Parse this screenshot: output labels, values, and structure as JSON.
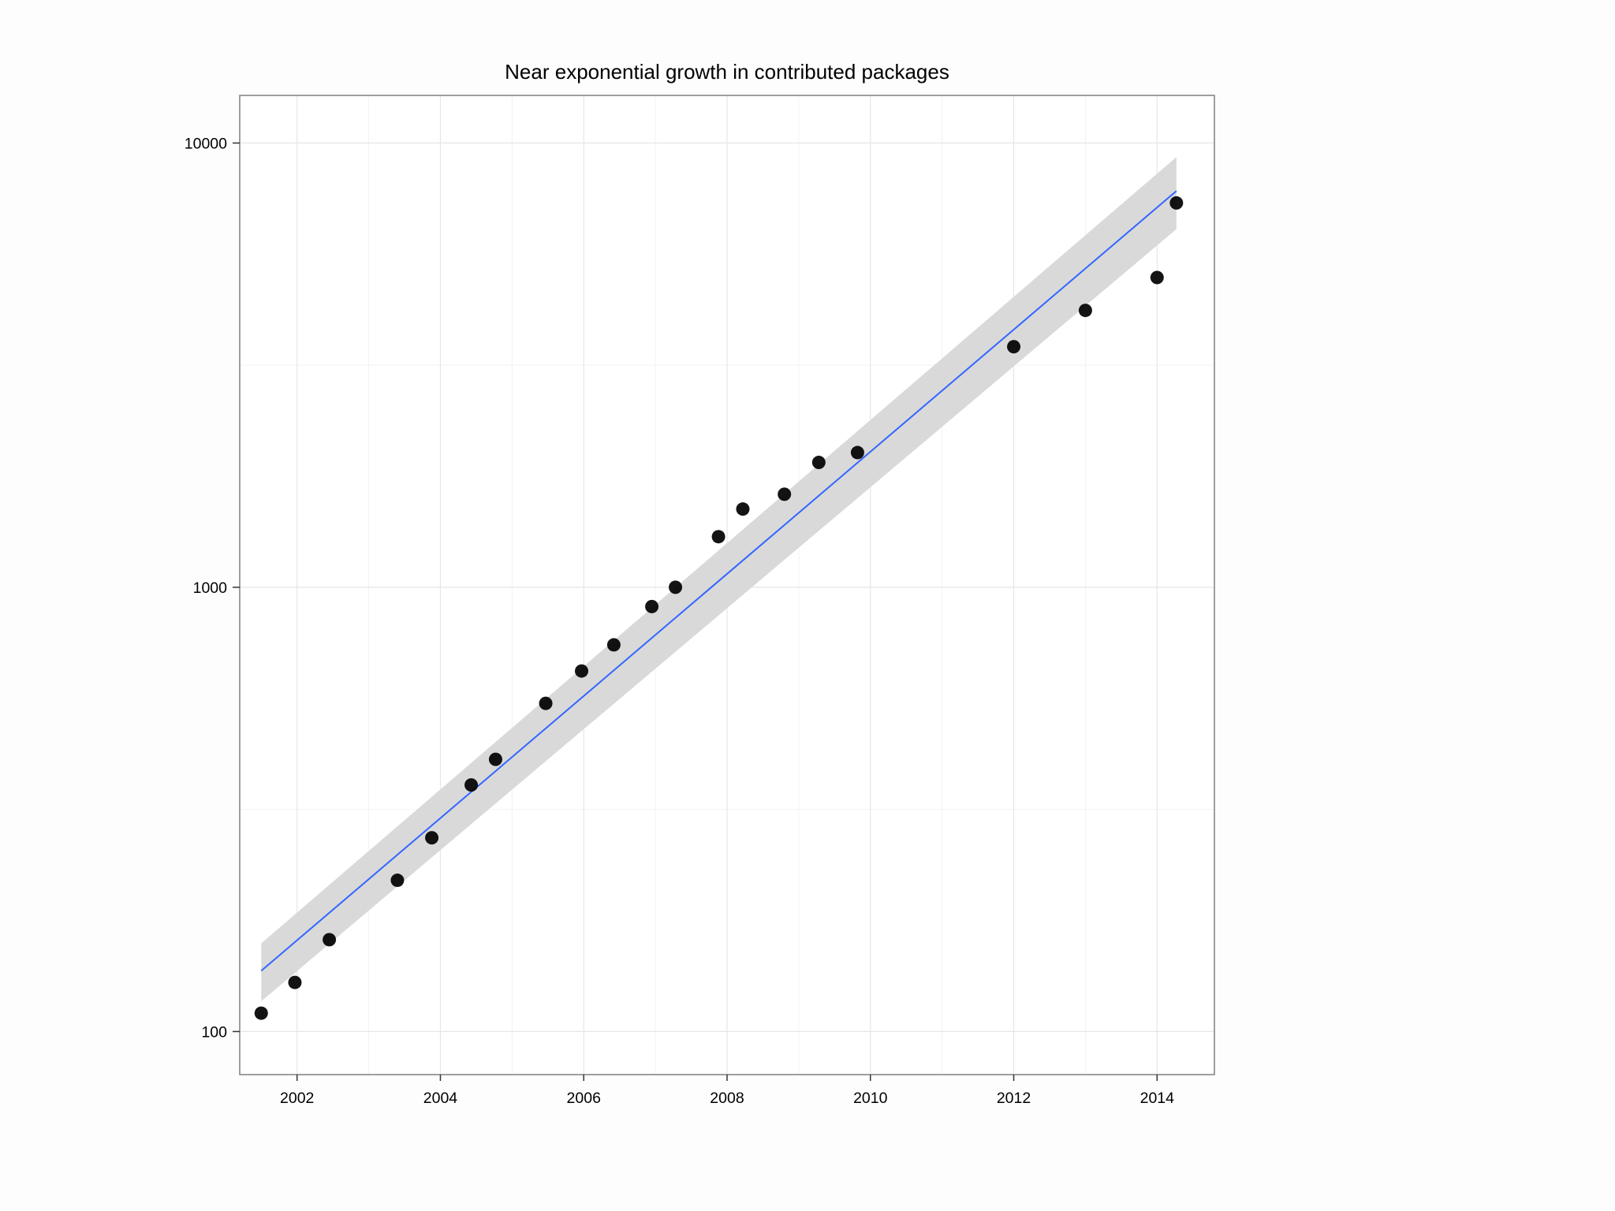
{
  "chart_data": {
    "type": "scatter",
    "title": "Near exponential growth in contributed packages",
    "xlabel": "",
    "ylabel": "",
    "y_scale": "log10",
    "xlim": [
      2001.2,
      2014.8
    ],
    "ylim": [
      80,
      12800
    ],
    "grid": true,
    "x_ticks": [
      2002,
      2004,
      2006,
      2008,
      2010,
      2012,
      2014
    ],
    "x_tick_labels": [
      "2002",
      "2004",
      "2006",
      "2008",
      "2010",
      "2012",
      "2014"
    ],
    "y_ticks": [
      100,
      1000,
      10000
    ],
    "y_tick_labels": [
      "100",
      "1000",
      "10000"
    ],
    "series": [
      {
        "x": [
          2001.5,
          2001.97,
          2002.45,
          2003.4,
          2003.88,
          2004.43,
          2004.77,
          2005.47,
          2005.97,
          2006.42,
          2006.95,
          2007.28,
          2007.88,
          2008.22,
          2008.8,
          2009.28,
          2009.82,
          2012.0,
          2013.0,
          2014.0,
          2014.27
        ],
        "y": [
          110,
          129,
          161,
          219,
          273,
          359,
          410,
          548,
          648,
          742,
          905,
          1000,
          1300,
          1500,
          1620,
          1910,
          2010,
          3480,
          4200,
          4980,
          7330
        ]
      }
    ],
    "fit": {
      "method": "lm",
      "color": "#3366ff",
      "x": [
        2001.5,
        2014.27
      ],
      "y": [
        137,
        7800
      ],
      "band_upper": [
        158,
        9300
      ],
      "band_lower": [
        117,
        6400
      ],
      "band_color": "#d9d9d9"
    }
  }
}
